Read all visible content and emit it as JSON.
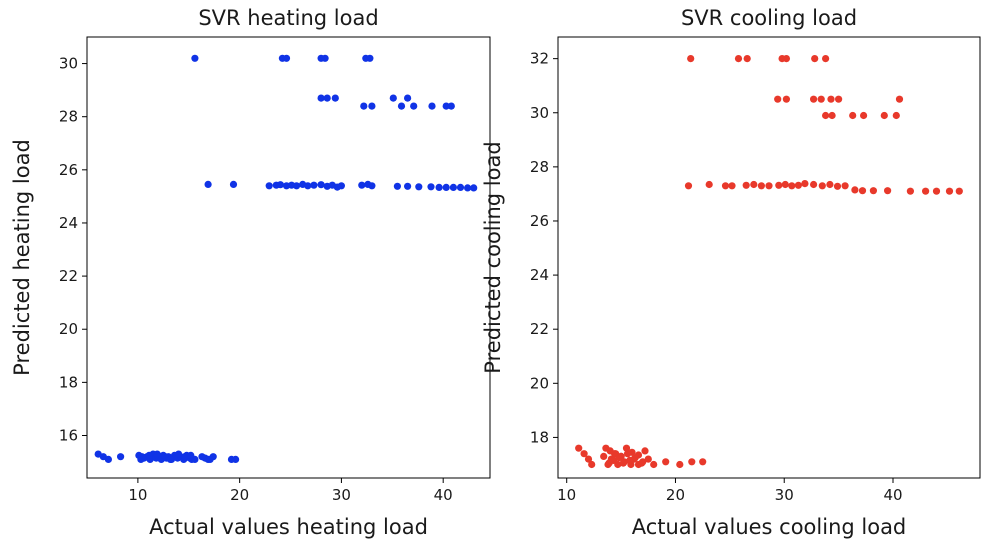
{
  "chart_data": [
    {
      "type": "scatter",
      "title": "SVR heating load",
      "xlabel": "Actual values heating load",
      "ylabel": "Predicted heating load",
      "xlim": [
        5.0,
        44.6
      ],
      "ylim": [
        14.4,
        31.0
      ],
      "xticks": [
        10,
        20,
        30,
        40
      ],
      "yticks": [
        16,
        18,
        20,
        22,
        24,
        26,
        28,
        30
      ],
      "grid": false,
      "color": "#1033e6",
      "x": [
        6.1,
        6.6,
        7.1,
        8.3,
        10.1,
        10.3,
        10.6,
        10.9,
        11.2,
        11.5,
        11.8,
        12.0,
        12.3,
        12.5,
        12.8,
        13.0,
        13.3,
        13.6,
        13.9,
        14.2,
        14.5,
        14.8,
        15.1,
        15.3,
        15.6,
        16.6,
        16.9,
        17.4,
        19.2,
        19.6,
        10.4,
        11.1,
        11.9,
        12.7,
        13.2,
        14.0,
        14.6,
        15.2,
        16.3,
        17.1,
        16.9,
        19.4,
        22.9,
        23.6,
        24.0,
        24.6,
        25.1,
        25.6,
        26.2,
        26.7,
        27.3,
        28.0,
        28.6,
        29.1,
        29.6,
        30.0,
        32.0,
        32.6,
        33.0,
        35.5,
        36.5,
        37.6,
        38.8,
        39.6,
        40.3,
        41.0,
        41.7,
        42.4,
        43.0,
        15.6,
        24.2,
        24.6,
        28.0,
        28.4,
        32.4,
        32.8,
        28.0,
        28.6,
        29.4,
        32.2,
        33.0,
        35.1,
        35.9,
        36.5,
        37.1,
        38.9,
        40.3,
        40.8
      ],
      "y": [
        15.3,
        15.2,
        15.1,
        15.2,
        15.25,
        15.1,
        15.15,
        15.2,
        15.1,
        15.3,
        15.15,
        15.2,
        15.1,
        15.25,
        15.15,
        15.2,
        15.1,
        15.25,
        15.15,
        15.2,
        15.1,
        15.25,
        15.15,
        15.1,
        15.1,
        15.15,
        15.1,
        15.2,
        15.1,
        15.1,
        15.2,
        15.25,
        15.3,
        15.2,
        15.1,
        15.3,
        15.2,
        15.25,
        15.2,
        15.1,
        25.45,
        25.45,
        25.4,
        25.42,
        25.44,
        25.4,
        25.42,
        25.4,
        25.45,
        25.4,
        25.42,
        25.44,
        25.38,
        25.42,
        25.35,
        25.4,
        25.42,
        25.45,
        25.4,
        25.38,
        25.38,
        25.36,
        25.36,
        25.34,
        25.34,
        25.34,
        25.34,
        25.32,
        25.32,
        30.2,
        30.2,
        30.2,
        30.2,
        30.2,
        30.2,
        30.2,
        28.7,
        28.7,
        28.7,
        28.4,
        28.4,
        28.7,
        28.4,
        28.7,
        28.4,
        28.4,
        28.4,
        28.4
      ]
    },
    {
      "type": "scatter",
      "title": "SVR cooling load",
      "xlabel": "Actual values cooling load",
      "ylabel": "Predicted cooling load",
      "xlim": [
        9.2,
        48.0
      ],
      "ylim": [
        16.5,
        32.8
      ],
      "xticks": [
        10,
        20,
        30,
        40
      ],
      "yticks": [
        18,
        20,
        22,
        24,
        26,
        28,
        30,
        32
      ],
      "grid": false,
      "color": "#e8392b",
      "x": [
        11.1,
        11.6,
        12.0,
        12.3,
        13.4,
        13.8,
        14.1,
        14.4,
        14.7,
        15.0,
        15.3,
        15.6,
        15.9,
        16.2,
        16.6,
        17.0,
        17.5,
        18.0,
        19.1,
        20.4,
        21.5,
        22.5,
        13.6,
        14.0,
        14.5,
        15.0,
        15.5,
        16.0,
        16.6,
        17.2,
        13.9,
        14.3,
        14.8,
        15.2,
        15.8,
        16.3,
        16.9,
        21.2,
        23.1,
        24.6,
        25.2,
        26.5,
        27.2,
        27.9,
        28.6,
        29.5,
        30.1,
        30.7,
        31.3,
        31.9,
        32.7,
        33.5,
        34.2,
        34.9,
        35.6,
        36.5,
        37.2,
        38.2,
        39.5,
        41.6,
        43.0,
        44.0,
        45.2,
        46.1,
        21.4,
        25.8,
        26.6,
        29.8,
        30.2,
        32.8,
        33.8,
        29.4,
        30.2,
        32.7,
        33.4,
        34.3,
        35.0,
        40.6,
        33.8,
        34.4,
        36.3,
        37.3,
        39.2,
        40.3
      ],
      "y": [
        17.6,
        17.4,
        17.2,
        17.0,
        17.3,
        17.0,
        17.2,
        17.4,
        17.0,
        17.3,
        17.1,
        17.4,
        17.0,
        17.2,
        17.0,
        17.1,
        17.2,
        17.0,
        17.1,
        17.0,
        17.1,
        17.1,
        17.6,
        17.5,
        17.4,
        17.3,
        17.6,
        17.45,
        17.35,
        17.5,
        17.05,
        17.15,
        17.25,
        17.05,
        17.15,
        17.25,
        17.05,
        27.3,
        27.35,
        27.3,
        27.3,
        27.32,
        27.35,
        27.3,
        27.3,
        27.32,
        27.35,
        27.3,
        27.32,
        27.38,
        27.35,
        27.3,
        27.35,
        27.28,
        27.3,
        27.15,
        27.12,
        27.12,
        27.12,
        27.1,
        27.1,
        27.1,
        27.1,
        27.1,
        32.0,
        32.0,
        32.0,
        32.0,
        32.0,
        32.0,
        32.0,
        30.5,
        30.5,
        30.5,
        30.5,
        30.5,
        30.5,
        30.5,
        29.9,
        29.9,
        29.9,
        29.9,
        29.9,
        29.9
      ]
    }
  ]
}
